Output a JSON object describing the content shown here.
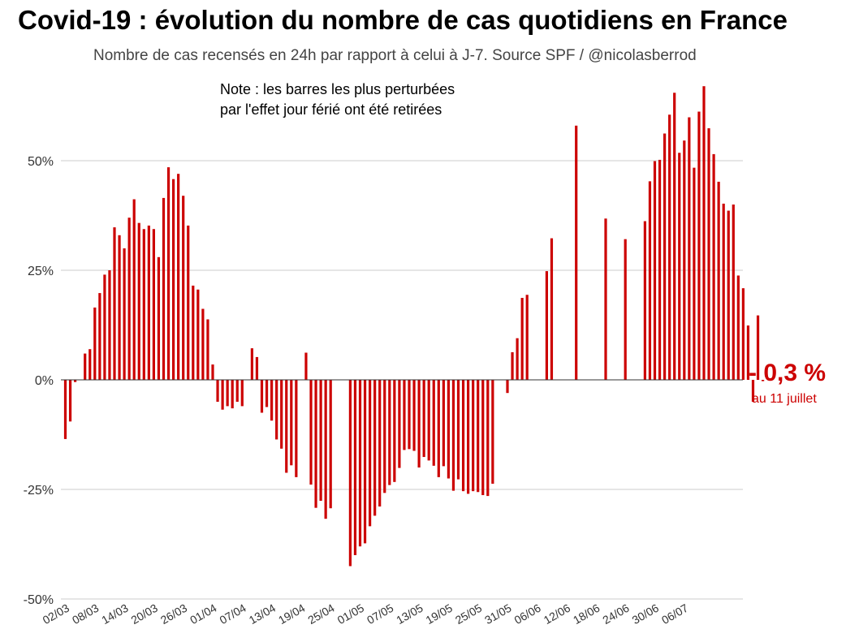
{
  "header": {
    "title": "Covid-19 : évolution du nombre de cas quotidiens en France",
    "subtitle": "Nombre de cas recensés en 24h par rapport à celui à J-7. Source SPF / @nicolasberrod"
  },
  "note": {
    "line1": "Note : les barres les plus perturbées",
    "line2": "par l'effet jour férié ont été retirées"
  },
  "callout": {
    "value": "- 0,3 %",
    "date": "au 11 juillet"
  },
  "colors": {
    "bar": "#cc0000",
    "grid": "#cccccc",
    "zero": "#333333"
  },
  "chart_data": {
    "type": "bar",
    "title": "Covid-19 : évolution du nombre de cas quotidiens en France",
    "subtitle": "Nombre de cas recensés en 24h par rapport à celui à J-7. Source SPF / @nicolasberrod",
    "xlabel": "",
    "ylabel": "",
    "ylim": [
      -50,
      70
    ],
    "yticks": [
      50,
      25,
      0,
      -25,
      -50
    ],
    "ytick_labels": [
      "50%",
      "25%",
      "0%",
      "-25%",
      "-50%"
    ],
    "xtick_labels": [
      "02/03",
      "08/03",
      "14/03",
      "20/03",
      "26/03",
      "01/04",
      "07/04",
      "13/04",
      "19/04",
      "25/04",
      "01/05",
      "07/05",
      "13/05",
      "19/05",
      "25/05",
      "31/05",
      "06/06",
      "12/06",
      "18/06",
      "24/06",
      "30/06",
      "06/07"
    ],
    "grid": true,
    "start_date": "02/03",
    "end_date": "11/07",
    "values": [
      -13.5,
      -9.5,
      -0.5,
      null,
      6,
      7,
      16.5,
      19.8,
      24,
      25,
      34.8,
      33,
      30,
      37,
      41.2,
      35.8,
      34.4,
      35.2,
      34.4,
      28,
      41.5,
      48.5,
      45.8,
      47,
      42,
      35.2,
      21.5,
      20.6,
      16.2,
      13.8,
      3.5,
      -5,
      -6.8,
      -6,
      -6.5,
      -5,
      -6,
      null,
      7.2,
      5.2,
      -7.5,
      -6.2,
      -9.3,
      -13.6,
      -15.7,
      -21.2,
      -19.5,
      -22.2,
      null,
      6.2,
      -23.9,
      -29.2,
      -27.6,
      -31.7,
      -29.3,
      null,
      null,
      null,
      -42.5,
      -40,
      -38,
      -37.3,
      -33.4,
      -31,
      -28.9,
      -25.8,
      -24,
      -23.3,
      -20.1,
      -16,
      -15.8,
      -16.2,
      -20,
      -17.6,
      -18.4,
      -19.6,
      -22.2,
      -19.7,
      -22.5,
      -25.3,
      -22.7,
      -25.4,
      -26,
      -25.4,
      -25.6,
      -26.3,
      -26.5,
      -23.7,
      null,
      null,
      -3,
      6.3,
      9.5,
      18.7,
      19.4,
      null,
      null,
      null,
      24.8,
      32.3,
      null,
      null,
      null,
      null,
      58,
      null,
      null,
      null,
      null,
      null,
      36.8,
      null,
      null,
      null,
      32.1,
      null,
      null,
      null,
      36.2,
      45.3,
      49.9,
      50.2,
      56.2,
      60.5,
      65.5,
      51.8,
      54.6,
      59.9,
      48.4,
      61.2,
      67,
      57.4,
      51.5,
      45.2,
      40.2,
      38.6,
      40,
      23.8,
      20.9,
      12.4,
      -5,
      14.7,
      -0.3
    ]
  }
}
